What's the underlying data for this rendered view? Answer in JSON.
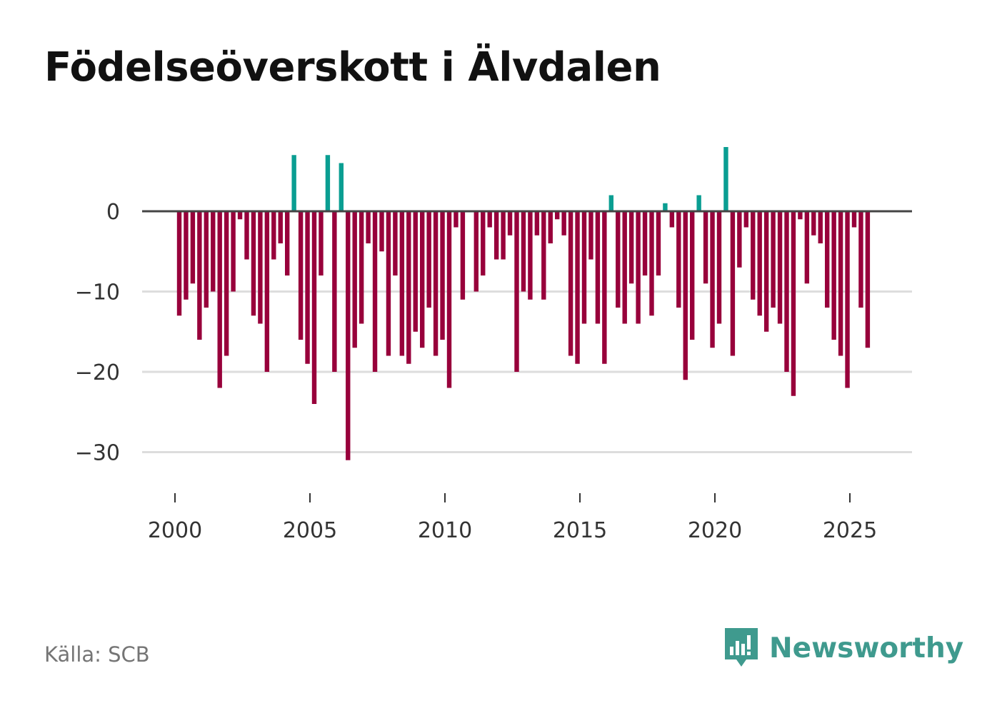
{
  "title": "Födelseöverskott i Älvdalen",
  "source": "Källa: SCB",
  "brand": {
    "name": "Newsworthy",
    "icon": "newsworthy-logo-icon"
  },
  "colors": {
    "positive": "#0a9e92",
    "negative": "#98003b",
    "zero_line": "#444444",
    "grid": "#dddddd",
    "brand": "#3f9a8e"
  },
  "chart_data": {
    "type": "bar",
    "title": "Födelseöverskott i Älvdalen",
    "xlabel": "",
    "ylabel": "",
    "ylim": [
      -36,
      9
    ],
    "xlim": [
      1999.0,
      2027.5
    ],
    "yticks": [
      0,
      -10,
      -20,
      -30
    ],
    "ytick_labels": [
      "0",
      "−10",
      "−20",
      "−30"
    ],
    "xticks": [
      2000,
      2005,
      2010,
      2015,
      2020,
      2025
    ],
    "xtick_labels": [
      "2000",
      "2005",
      "2010",
      "2015",
      "2020",
      "2025"
    ],
    "frequency": "quarterly",
    "start": 2000.0,
    "values": [
      -13,
      -11,
      -9,
      -16,
      -12,
      -10,
      -22,
      -18,
      -10,
      -1,
      -6,
      -13,
      -14,
      -20,
      -6,
      -4,
      -8,
      7,
      -16,
      -19,
      -24,
      -8,
      7,
      -20,
      6,
      -31,
      -17,
      -14,
      -4,
      -20,
      -5,
      -18,
      -8,
      -18,
      -19,
      -15,
      -17,
      -12,
      -18,
      -16,
      -22,
      -2,
      -11,
      0,
      -10,
      -8,
      -2,
      -6,
      -6,
      -3,
      -20,
      -10,
      -11,
      -3,
      -11,
      -4,
      -1,
      -3,
      -18,
      -19,
      -14,
      -6,
      -14,
      -19,
      2,
      -12,
      -14,
      -9,
      -14,
      -8,
      -13,
      -8,
      1,
      -2,
      -12,
      -21,
      -16,
      2,
      -9,
      -17,
      -14,
      8,
      -18,
      -7,
      -2,
      -11,
      -13,
      -15,
      -12,
      -14,
      -20,
      -23,
      -1,
      -9,
      -3,
      -4,
      -12,
      -16,
      -18,
      -22,
      -2,
      -12,
      -17
    ]
  }
}
